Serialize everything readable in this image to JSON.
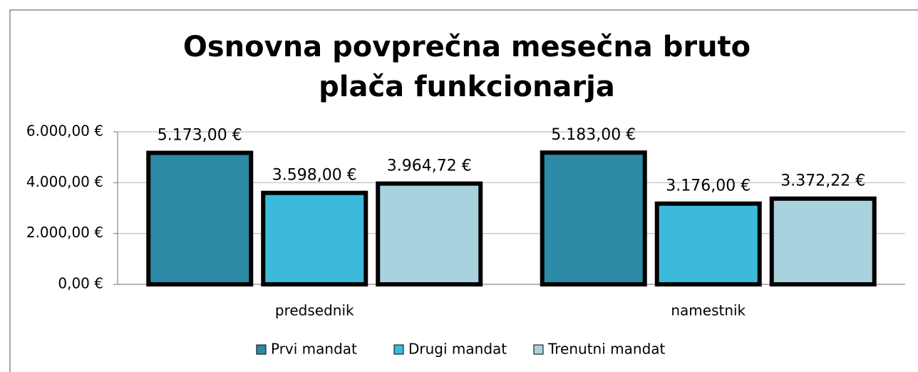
{
  "chart_data": {
    "type": "bar",
    "title": "Osnovna povprečna mesečna bruto plača funkcionarja",
    "categories": [
      "predsednik",
      "namestnik"
    ],
    "series": [
      {
        "name": "Prvi mandat",
        "color": "#2b8aa6",
        "values": [
          5173,
          5183
        ],
        "value_labels": [
          "5.173,00 €",
          "5.183,00 €"
        ]
      },
      {
        "name": "Drugi mandat",
        "color": "#3cbadb",
        "values": [
          3598,
          3176
        ],
        "value_labels": [
          "3.598,00 €",
          "3.176,00 €"
        ]
      },
      {
        "name": "Trenutni mandat",
        "color": "#a9d2df",
        "values": [
          3964.72,
          3372.22
        ],
        "value_labels": [
          "3.964,72 €",
          "3.372,22 €"
        ]
      }
    ],
    "ylim": [
      0,
      6000
    ],
    "yticks": [
      {
        "value": 0,
        "label": "0,00 €"
      },
      {
        "value": 2000,
        "label": "2.000,00 €"
      },
      {
        "value": 4000,
        "label": "4.000,00 €"
      },
      {
        "value": 6000,
        "label": "6.000,00 €"
      }
    ],
    "grid": true,
    "legend": "bottom"
  }
}
